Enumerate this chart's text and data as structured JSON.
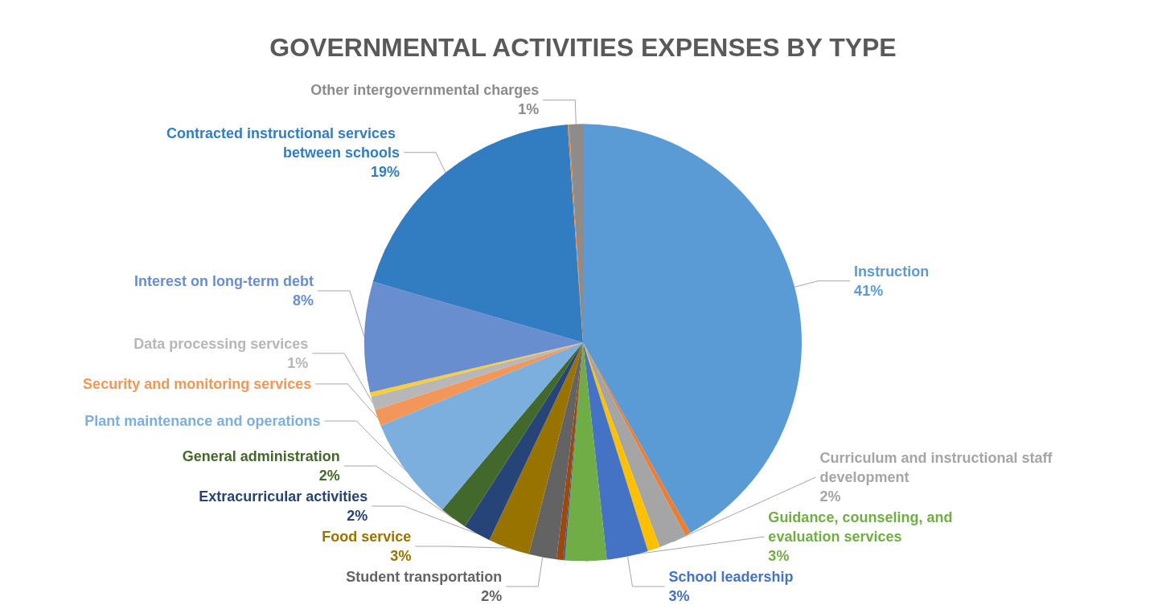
{
  "chart_data": {
    "type": "pie",
    "title": "GOVERNMENTAL ACTIVITIES EXPENSES BY TYPE",
    "categories": [
      "Instruction",
      null,
      "Curriculum and instructional staff development",
      null,
      "School leadership",
      "Guidance, counseling, and evaluation services",
      null,
      null,
      "Student transportation",
      "Food service",
      "Extracurricular activities",
      "General administration",
      "Plant maintenance and operations",
      "Security and monitoring services",
      "Data processing services",
      null,
      "Interest on long-term debt",
      "Contracted instructional services between schools",
      null,
      "Other intergovernmental charges"
    ],
    "values": [
      41,
      0.4,
      2,
      0.9,
      3,
      3,
      0.1,
      0.5,
      2,
      3,
      2,
      2,
      7.5,
      1.2,
      1,
      0.3,
      8,
      19,
      0.1,
      1
    ],
    "value_labels": [
      "41%",
      null,
      "2%",
      null,
      "3%",
      "3%",
      null,
      null,
      "2%",
      "3%",
      "2%",
      "2%",
      null,
      null,
      "1%",
      null,
      "8%",
      "19%",
      null,
      "1%"
    ],
    "colors": [
      "#5b9bd5",
      "#ed7d31",
      "#a5a5a5",
      "#ffc000",
      "#4472c4",
      "#70ad47",
      "#255e91",
      "#9e480e",
      "#636363",
      "#997300",
      "#264478",
      "#43682b",
      "#7cafdd",
      "#f1975a",
      "#b7b7b7",
      "#ffcd33",
      "#698ed0",
      "#327dc2",
      "#ed7d31",
      "#8c8c8c"
    ],
    "legend": false
  }
}
